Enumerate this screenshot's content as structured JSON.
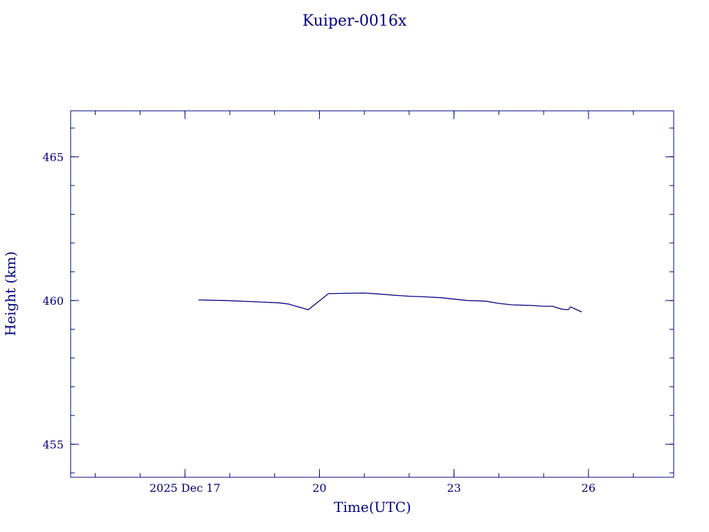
{
  "chart_data": {
    "type": "line",
    "title": "Kuiper-0016x",
    "xlabel": "Time(UTC)",
    "ylabel": "Height (km)",
    "x_ticks": [
      {
        "label": "2025 Dec 17",
        "value": 17
      },
      {
        "label": "20",
        "value": 20
      },
      {
        "label": "23",
        "value": 23
      },
      {
        "label": "26",
        "value": 26
      }
    ],
    "y_ticks": [
      {
        "label": "455",
        "value": 455
      },
      {
        "label": "460",
        "value": 460
      },
      {
        "label": "465",
        "value": 465
      }
    ],
    "xlim": [
      14.45,
      27.9
    ],
    "ylim": [
      453.85,
      466.6
    ],
    "grid": false,
    "color": "#000080",
    "series": [
      {
        "x": [
          17.3,
          17.9,
          18.5,
          19.1,
          19.3,
          19.75,
          20.2,
          20.5,
          21.0,
          21.3,
          21.7,
          22.0,
          22.3,
          22.7,
          23.0,
          23.3,
          23.7,
          24.0,
          24.3,
          24.7,
          25.0,
          25.2,
          25.4,
          25.55,
          25.6,
          25.85
        ],
        "y": [
          460.02,
          460.0,
          459.96,
          459.92,
          459.88,
          459.68,
          460.24,
          460.25,
          460.26,
          460.23,
          460.18,
          460.15,
          460.13,
          460.1,
          460.05,
          460.0,
          459.98,
          459.9,
          459.85,
          459.83,
          459.8,
          459.8,
          459.7,
          459.68,
          459.78,
          459.6
        ]
      }
    ]
  }
}
